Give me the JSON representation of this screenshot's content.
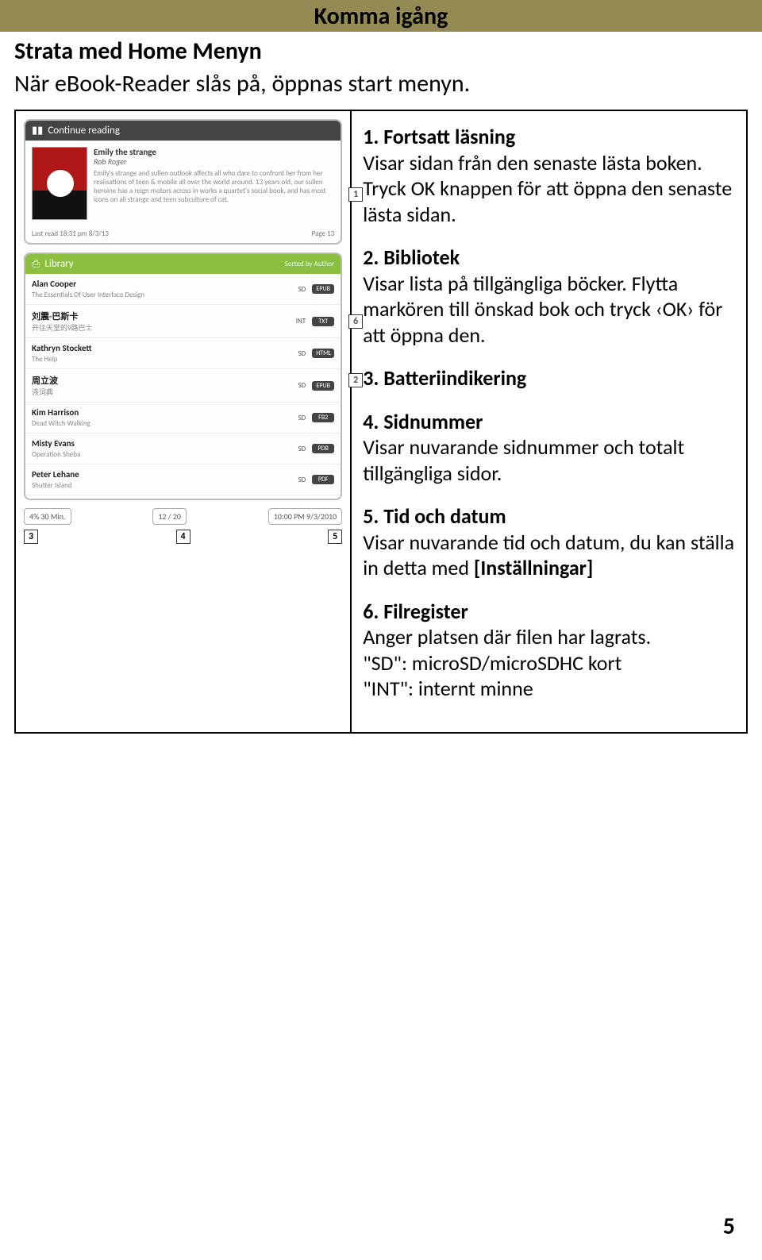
{
  "banner_title": "Komma igång",
  "heading": "Strata med Home Menyn",
  "subline": "När eBook-Reader slås på, öppnas start menyn.",
  "page_number": "5",
  "items": [
    {
      "title": "1. Fortsatt läsning",
      "body": "Visar sidan från den senaste lästa boken. Tryck OK knappen för att öppna den senaste lästa sidan."
    },
    {
      "title": "2. Bibliotek",
      "body": "Visar lista på tillgängliga böcker. Flytta markören till önskad bok och tryck ‹OK› för att öppna den."
    },
    {
      "title": "3. Batteriindikering",
      "body": ""
    },
    {
      "title": "4. Sidnummer",
      "body": "Visar nuvarande sidnummer och totalt tillgängliga sidor."
    },
    {
      "title": "5. Tid och datum",
      "body": "Visar nuvarande tid och datum, du kan ställa in detta med [Inställningar]"
    },
    {
      "title": "6. Filregister",
      "body": "Anger platsen där filen har lagrats.\n\"SD\": microSD/microSDHC kort\n\"INT\": internt minne"
    }
  ],
  "screenshot": {
    "continue_header": "Continue reading",
    "book_title": "Emily the strange",
    "book_author": "Rob Roger",
    "last_read": "Last read 18:31 pm  8/3/13",
    "page_info": "Page 13",
    "library_header": "Library",
    "library_sort": "Sorted by Author",
    "rows": [
      {
        "name": "Alan Cooper",
        "sub": "The Essentials Of User Interface Design",
        "loc": "SD",
        "fmt": "EPUB"
      },
      {
        "name": "刘震-巴斯卡",
        "sub": "开往天堂的9路巴士",
        "loc": "INT",
        "fmt": "TXT"
      },
      {
        "name": "Kathryn Stockett",
        "sub": "The Help",
        "loc": "SD",
        "fmt": "HTML"
      },
      {
        "name": "周立波",
        "sub": "诙词典",
        "loc": "SD",
        "fmt": "EPUB"
      },
      {
        "name": "Kim Harrison",
        "sub": "Dead Witch Walking",
        "loc": "SD",
        "fmt": "FB2"
      },
      {
        "name": "Misty Evans",
        "sub": "Operation Sheba",
        "loc": "SD",
        "fmt": "PDB"
      },
      {
        "name": "Peter Lehane",
        "sub": "Shutter Island",
        "loc": "SD",
        "fmt": "PDF"
      }
    ],
    "battery": "4%  30 Min.",
    "pages": "12 / 20",
    "clock": "10:00 PM  9/3/2010",
    "callouts": [
      "1",
      "6",
      "2",
      "3",
      "4",
      "5"
    ]
  }
}
